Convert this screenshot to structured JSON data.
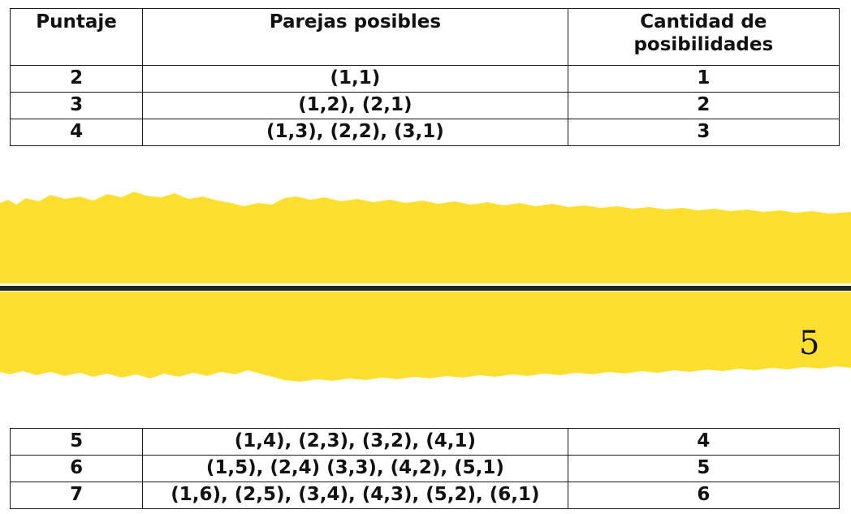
{
  "headers": {
    "puntaje": "Puntaje",
    "parejas": "Parejas posibles",
    "cantidad_line1": "Cantidad de",
    "cantidad_line2": "posibilidades"
  },
  "rows_top": [
    {
      "puntaje": "2",
      "parejas": "(1,1)",
      "cantidad": "1"
    },
    {
      "puntaje": "3",
      "parejas": "(1,2), (2,1)",
      "cantidad": "2"
    },
    {
      "puntaje": "4",
      "parejas": "(1,3), (2,2), (3,1)",
      "cantidad": "3"
    }
  ],
  "rows_bottom": [
    {
      "puntaje": "5",
      "parejas": "(1,4), (2,3), (3,2), (4,1)",
      "cantidad": "4"
    },
    {
      "puntaje": "6",
      "parejas": "(1,5), (2,4) (3,3), (4,2), (5,1)",
      "cantidad": "5"
    },
    {
      "puntaje": "7",
      "parejas": "(1,6), (2,5), (3,4), (4,3), (5,2), (6,1)",
      "cantidad": "6"
    }
  ],
  "page_number": "5",
  "colors": {
    "band_yellow": "#fde02f",
    "divider": "#222222"
  }
}
